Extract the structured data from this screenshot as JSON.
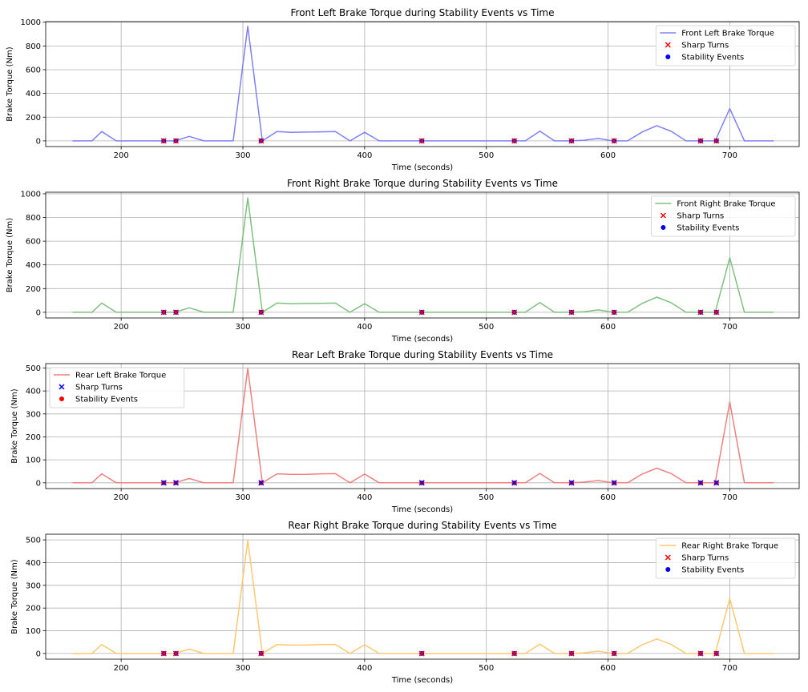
{
  "chart_data": [
    {
      "type": "line",
      "title": "Front Left Brake Torque during Stability Events vs Time",
      "xlabel": "Time (seconds)",
      "ylabel": "Brake Torque (Nm)",
      "xlim": [
        138,
        757
      ],
      "ylim": [
        -48,
        1005
      ],
      "xticks": [
        200,
        300,
        400,
        500,
        600,
        700
      ],
      "yticks": [
        0,
        200,
        400,
        600,
        800,
        1000
      ],
      "grid": true,
      "legend_loc": "top-right",
      "colors": {
        "line": "#8080f5",
        "marker_sharp": "#ff0000",
        "marker_stab": "#0000ff"
      },
      "series": [
        {
          "name": "Front Left Brake Torque",
          "x": [
            160,
            176,
            184,
            196,
            208,
            220,
            232,
            244,
            256,
            268,
            280,
            292,
            304,
            316,
            328,
            340,
            352,
            364,
            376,
            388,
            400,
            412,
            424,
            436,
            448,
            460,
            472,
            484,
            496,
            508,
            520,
            532,
            544,
            556,
            568,
            580,
            592,
            604,
            616,
            628,
            640,
            652,
            664,
            676,
            688,
            700,
            712,
            736
          ],
          "y": [
            0,
            0,
            78,
            0,
            0,
            0,
            0,
            0,
            38,
            0,
            0,
            0,
            965,
            0,
            78,
            72,
            74,
            76,
            78,
            0,
            72,
            0,
            0,
            0,
            0,
            0,
            0,
            0,
            0,
            0,
            0,
            0,
            82,
            0,
            0,
            5,
            20,
            0,
            0,
            75,
            128,
            80,
            0,
            0,
            0,
            272,
            0,
            0
          ]
        }
      ],
      "scatter": [
        {
          "name": "Sharp Turns",
          "marker": "x",
          "x": [
            235,
            245,
            315,
            447,
            523,
            570,
            605,
            676,
            689
          ],
          "y": [
            0,
            0,
            0,
            0,
            0,
            0,
            0,
            0,
            0
          ]
        },
        {
          "name": "Stability Events",
          "marker": "o",
          "x": [
            235,
            245,
            315,
            447,
            523,
            570,
            605,
            676,
            689
          ],
          "y": [
            0,
            0,
            0,
            0,
            0,
            0,
            0,
            0,
            0
          ]
        }
      ]
    },
    {
      "type": "line",
      "title": "Front Right Brake Torque during Stability Events vs Time",
      "xlabel": "Time (seconds)",
      "ylabel": "Brake Torque (Nm)",
      "xlim": [
        138,
        757
      ],
      "ylim": [
        -48,
        1013
      ],
      "xticks": [
        200,
        300,
        400,
        500,
        600,
        700
      ],
      "yticks": [
        0,
        200,
        400,
        600,
        800,
        1000
      ],
      "grid": true,
      "legend_loc": "top-right",
      "colors": {
        "line": "#80c080",
        "marker_sharp": "#ff0000",
        "marker_stab": "#0000ff"
      },
      "series": [
        {
          "name": "Front Right Brake Torque",
          "x": [
            160,
            176,
            184,
            196,
            208,
            220,
            232,
            244,
            256,
            268,
            280,
            292,
            304,
            316,
            328,
            340,
            352,
            364,
            376,
            388,
            400,
            412,
            424,
            436,
            448,
            460,
            472,
            484,
            496,
            508,
            520,
            532,
            544,
            556,
            568,
            580,
            592,
            604,
            616,
            628,
            640,
            652,
            664,
            676,
            688,
            700,
            712,
            736
          ],
          "y": [
            0,
            0,
            78,
            0,
            0,
            0,
            0,
            0,
            38,
            0,
            0,
            0,
            965,
            0,
            78,
            72,
            74,
            76,
            78,
            0,
            72,
            0,
            0,
            0,
            0,
            0,
            0,
            0,
            0,
            0,
            0,
            0,
            82,
            0,
            0,
            5,
            20,
            0,
            0,
            75,
            128,
            80,
            0,
            0,
            0,
            460,
            0,
            0
          ]
        }
      ],
      "scatter": [
        {
          "name": "Sharp Turns",
          "marker": "x",
          "x": [
            235,
            245,
            315,
            447,
            523,
            570,
            605,
            676,
            689
          ],
          "y": [
            0,
            0,
            0,
            0,
            0,
            0,
            0,
            0,
            0
          ]
        },
        {
          "name": "Stability Events",
          "marker": "o",
          "x": [
            235,
            245,
            315,
            447,
            523,
            570,
            605,
            676,
            689
          ],
          "y": [
            0,
            0,
            0,
            0,
            0,
            0,
            0,
            0,
            0
          ]
        }
      ]
    },
    {
      "type": "line",
      "title": "Rear Left Brake Torque during Stability Events vs Time",
      "xlabel": "Time (seconds)",
      "ylabel": "Brake Torque (Nm)",
      "xlim": [
        138,
        757
      ],
      "ylim": [
        -25,
        519
      ],
      "xticks": [
        200,
        300,
        400,
        500,
        600,
        700
      ],
      "yticks": [
        0,
        100,
        200,
        300,
        400,
        500
      ],
      "grid": true,
      "legend_loc": "top-left",
      "colors": {
        "line": "#f08080",
        "marker_sharp": "#0000ff",
        "marker_stab": "#ff0000"
      },
      "series": [
        {
          "name": "Rear Left Brake Torque",
          "x": [
            160,
            176,
            184,
            196,
            208,
            220,
            232,
            244,
            256,
            268,
            280,
            292,
            304,
            316,
            328,
            340,
            352,
            364,
            376,
            388,
            400,
            412,
            424,
            436,
            448,
            460,
            472,
            484,
            496,
            508,
            520,
            532,
            544,
            556,
            568,
            580,
            592,
            604,
            616,
            628,
            640,
            652,
            664,
            676,
            688,
            700,
            712,
            736
          ],
          "y": [
            0,
            0,
            39,
            0,
            0,
            0,
            0,
            0,
            19,
            0,
            0,
            0,
            498,
            0,
            39,
            37,
            37,
            39,
            40,
            0,
            38,
            0,
            0,
            0,
            0,
            0,
            0,
            0,
            0,
            0,
            0,
            0,
            41,
            0,
            0,
            3,
            10,
            0,
            0,
            38,
            64,
            40,
            0,
            0,
            0,
            352,
            0,
            0
          ]
        }
      ],
      "scatter": [
        {
          "name": "Sharp Turns",
          "marker": "x",
          "x": [
            235,
            245,
            315,
            447,
            523,
            570,
            605,
            676,
            689
          ],
          "y": [
            0,
            0,
            0,
            0,
            0,
            0,
            0,
            0,
            0
          ]
        },
        {
          "name": "Stability Events",
          "marker": "o",
          "x": [
            235,
            245,
            315,
            447,
            523,
            570,
            605,
            676,
            689
          ],
          "y": [
            0,
            0,
            0,
            0,
            0,
            0,
            0,
            0,
            0
          ]
        }
      ]
    },
    {
      "type": "line",
      "title": "Rear Right Brake Torque during Stability Events vs Time",
      "xlabel": "Time (seconds)",
      "ylabel": "Brake Torque (Nm)",
      "xlim": [
        138,
        757
      ],
      "ylim": [
        -25,
        525
      ],
      "xticks": [
        200,
        300,
        400,
        500,
        600,
        700
      ],
      "yticks": [
        0,
        100,
        200,
        300,
        400,
        500
      ],
      "grid": true,
      "legend_loc": "top-right",
      "colors": {
        "line": "#ffc870",
        "marker_sharp": "#ff0000",
        "marker_stab": "#0000ff"
      },
      "series": [
        {
          "name": "Rear Right Brake Torque",
          "x": [
            160,
            176,
            184,
            196,
            208,
            220,
            232,
            244,
            256,
            268,
            280,
            292,
            304,
            316,
            328,
            340,
            352,
            364,
            376,
            388,
            400,
            412,
            424,
            436,
            448,
            460,
            472,
            484,
            496,
            508,
            520,
            532,
            544,
            556,
            568,
            580,
            592,
            604,
            616,
            628,
            640,
            652,
            664,
            676,
            688,
            700,
            712,
            736
          ],
          "y": [
            0,
            0,
            39,
            0,
            0,
            0,
            0,
            0,
            19,
            0,
            0,
            0,
            498,
            0,
            39,
            37,
            37,
            39,
            40,
            0,
            38,
            0,
            0,
            0,
            0,
            0,
            0,
            0,
            0,
            0,
            0,
            0,
            41,
            0,
            0,
            3,
            10,
            0,
            0,
            38,
            64,
            40,
            0,
            0,
            0,
            242,
            0,
            0
          ]
        }
      ],
      "scatter": [
        {
          "name": "Sharp Turns",
          "marker": "x",
          "x": [
            235,
            245,
            315,
            447,
            523,
            570,
            605,
            676,
            689
          ],
          "y": [
            0,
            0,
            0,
            0,
            0,
            0,
            0,
            0,
            0
          ]
        },
        {
          "name": "Stability Events",
          "marker": "o",
          "x": [
            235,
            245,
            315,
            447,
            523,
            570,
            605,
            676,
            689
          ],
          "y": [
            0,
            0,
            0,
            0,
            0,
            0,
            0,
            0,
            0
          ]
        }
      ]
    }
  ]
}
